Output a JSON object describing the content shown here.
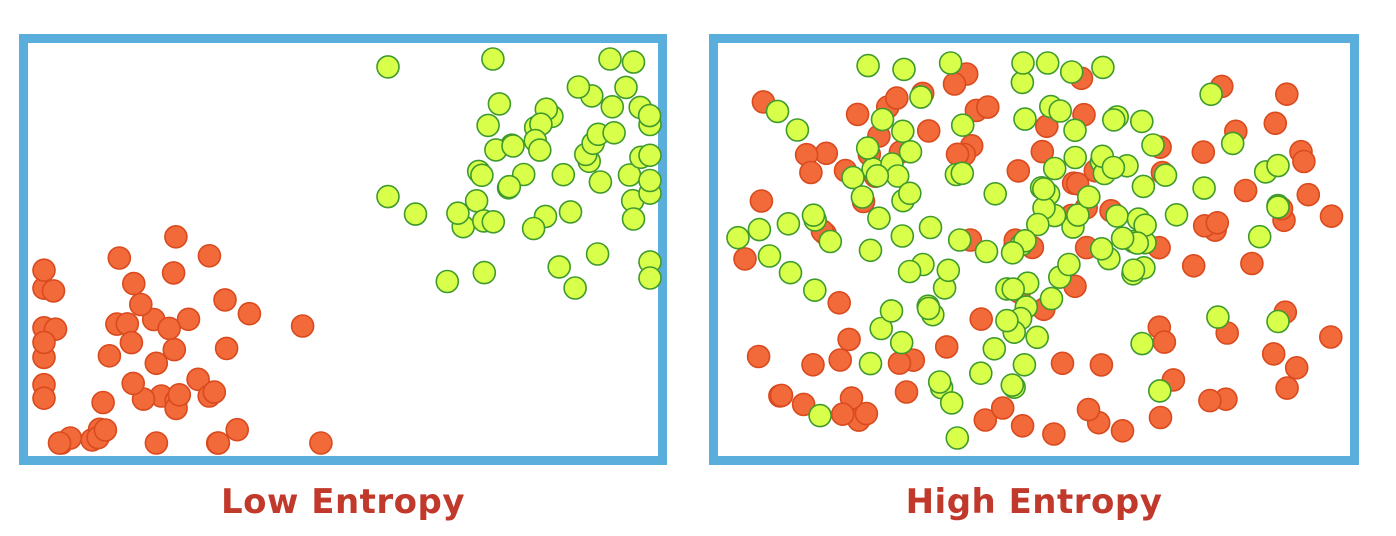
{
  "diagram": {
    "colors": {
      "frame": "#5aaedc",
      "caption": "#c0392b",
      "particle_a_fill": "#f2693a",
      "particle_a_stroke": "#d94a1e",
      "particle_b_fill": "#d8ff4a",
      "particle_b_stroke": "#3f9a2d"
    },
    "panels": [
      {
        "id": "left",
        "caption": "Low Entropy",
        "state": "separated",
        "particle_a_count": 50,
        "particle_b_count": 58
      },
      {
        "id": "right",
        "caption": "High Entropy",
        "state": "mixed",
        "particle_a_count": 103,
        "particle_b_count": 128
      }
    ]
  }
}
